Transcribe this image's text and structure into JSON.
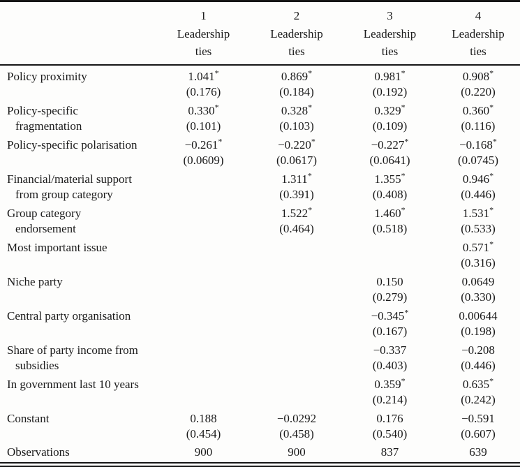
{
  "colors": {
    "background": "#fdfdfc",
    "text": "#1a1a1a",
    "rule": "#161616"
  },
  "table": {
    "columns": [
      {
        "number": "1",
        "label_lines": [
          "Leadership",
          "ties"
        ]
      },
      {
        "number": "2",
        "label_lines": [
          "Leadership",
          "ties"
        ]
      },
      {
        "number": "3",
        "label_lines": [
          "Leadership",
          "ties"
        ]
      },
      {
        "number": "4",
        "label_lines": [
          "Leadership",
          "ties"
        ]
      }
    ],
    "rows": [
      {
        "label": [
          "Policy proximity"
        ],
        "cells": [
          {
            "coef": "1.041",
            "sig": "*",
            "se": "(0.176)"
          },
          {
            "coef": "0.869",
            "sig": "*",
            "se": "(0.184)"
          },
          {
            "coef": "0.981",
            "sig": "*",
            "se": "(0.192)"
          },
          {
            "coef": "0.908",
            "sig": "*",
            "se": "(0.220)"
          }
        ]
      },
      {
        "label": [
          "Policy-specific",
          "fragmentation"
        ],
        "cells": [
          {
            "coef": "0.330",
            "sig": "*",
            "se": "(0.101)"
          },
          {
            "coef": "0.328",
            "sig": "*",
            "se": "(0.103)"
          },
          {
            "coef": "0.329",
            "sig": "*",
            "se": "(0.109)"
          },
          {
            "coef": "0.360",
            "sig": "*",
            "se": "(0.116)"
          }
        ]
      },
      {
        "label": [
          "Policy-specific polarisation"
        ],
        "cells": [
          {
            "coef": "−0.261",
            "sig": "*",
            "se": "(0.0609)"
          },
          {
            "coef": "−0.220",
            "sig": "*",
            "se": "(0.0617)"
          },
          {
            "coef": "−0.227",
            "sig": "*",
            "se": "(0.0641)"
          },
          {
            "coef": "−0.168",
            "sig": "*",
            "se": "(0.0745)"
          }
        ]
      },
      {
        "label": [
          "Financial/material support",
          "from group category"
        ],
        "cells": [
          null,
          {
            "coef": "1.311",
            "sig": "*",
            "se": "(0.391)"
          },
          {
            "coef": "1.355",
            "sig": "*",
            "se": "(0.408)"
          },
          {
            "coef": "0.946",
            "sig": "*",
            "se": "(0.446)"
          }
        ]
      },
      {
        "label": [
          "Group category",
          "endorsement"
        ],
        "cells": [
          null,
          {
            "coef": "1.522",
            "sig": "*",
            "se": "(0.464)"
          },
          {
            "coef": "1.460",
            "sig": "*",
            "se": "(0.518)"
          },
          {
            "coef": "1.531",
            "sig": "*",
            "se": "(0.533)"
          }
        ]
      },
      {
        "label": [
          "Most important issue"
        ],
        "cells": [
          null,
          null,
          null,
          {
            "coef": "0.571",
            "sig": "*",
            "se": "(0.316)"
          }
        ]
      },
      {
        "label": [
          "Niche party"
        ],
        "cells": [
          null,
          null,
          {
            "coef": "0.150",
            "sig": "",
            "se": "(0.279)"
          },
          {
            "coef": "0.0649",
            "sig": "",
            "se": "(0.330)"
          }
        ]
      },
      {
        "label": [
          "Central party organisation"
        ],
        "cells": [
          null,
          null,
          {
            "coef": "−0.345",
            "sig": "*",
            "se": "(0.167)"
          },
          {
            "coef": "0.00644",
            "sig": "",
            "se": "(0.198)"
          }
        ]
      },
      {
        "label": [
          "Share of party income from",
          "subsidies"
        ],
        "cells": [
          null,
          null,
          {
            "coef": "−0.337",
            "sig": "",
            "se": "(0.403)"
          },
          {
            "coef": "−0.208",
            "sig": "",
            "se": "(0.446)"
          }
        ]
      },
      {
        "label": [
          "In government last 10 years"
        ],
        "cells": [
          null,
          null,
          {
            "coef": "0.359",
            "sig": "*",
            "se": "(0.214)"
          },
          {
            "coef": "0.635",
            "sig": "*",
            "se": "(0.242)"
          }
        ]
      },
      {
        "label": [
          "Constant"
        ],
        "cells": [
          {
            "coef": "0.188",
            "sig": "",
            "se": "(0.454)"
          },
          {
            "coef": "−0.0292",
            "sig": "",
            "se": "(0.458)"
          },
          {
            "coef": "0.176",
            "sig": "",
            "se": "(0.540)"
          },
          {
            "coef": "−0.591",
            "sig": "",
            "se": "(0.607)"
          }
        ]
      }
    ],
    "observations": {
      "label": "Observations",
      "values": [
        "900",
        "900",
        "837",
        "639"
      ]
    }
  }
}
